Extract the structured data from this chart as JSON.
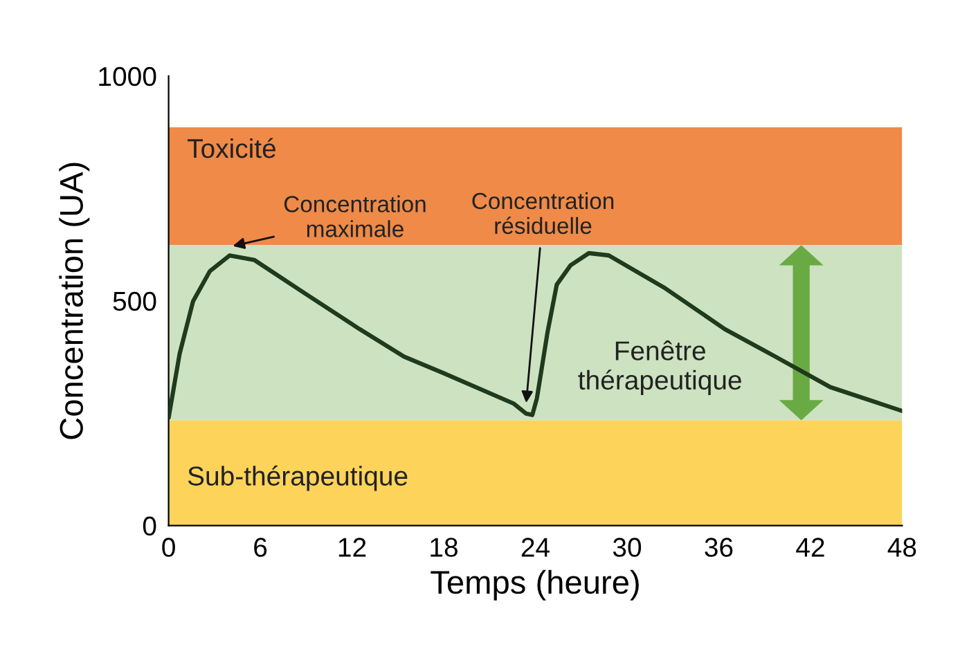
{
  "chart_data": {
    "type": "line",
    "xlabel": "Temps (heure)",
    "ylabel": "Concentration (UA)",
    "xlim": [
      0,
      48
    ],
    "xticks": [
      0,
      6,
      12,
      18,
      24,
      30,
      36,
      42,
      48
    ],
    "ylim": [
      0,
      1000
    ],
    "yticks": [
      0,
      500,
      1000
    ],
    "grid": false,
    "legend": false,
    "marker": "none",
    "line_style": "solid",
    "series": [
      {
        "color": "#1f3a1c",
        "x": [
          0,
          0.72,
          1.6,
          2.7,
          4.0,
          5.6,
          8.9,
          12.5,
          15.4,
          18.0,
          22.6,
          23.4,
          23.8,
          24.1,
          24.8,
          25.4,
          26.3,
          27.5,
          28.8,
          32.4,
          36.4,
          39.7,
          43.3,
          48.0
        ],
        "values": [
          240,
          382,
          499,
          566,
          601,
          591,
          517,
          437,
          376,
          339,
          271,
          249,
          246,
          283,
          431,
          536,
          579,
          606,
          601,
          530,
          437,
          376,
          308,
          255
        ]
      }
    ],
    "bands": [
      {
        "axis": "y",
        "from": 624,
        "to": 886,
        "label": "Toxicité",
        "color": "#ef8a48"
      },
      {
        "axis": "y",
        "from": 234,
        "to": 624,
        "label": "Fenêtre\nthérapeutique",
        "color": "#cde2c0"
      },
      {
        "axis": "y",
        "from": 0,
        "to": 234,
        "label": "Sub-thérapeutique",
        "color": "#fdd35a"
      }
    ],
    "annotations": [
      {
        "text": "Concentration\nmaximale",
        "x": 4.2,
        "y": 622
      },
      {
        "text": "Concentration\nrésiduelle",
        "x": 23.4,
        "y": 273
      }
    ]
  }
}
